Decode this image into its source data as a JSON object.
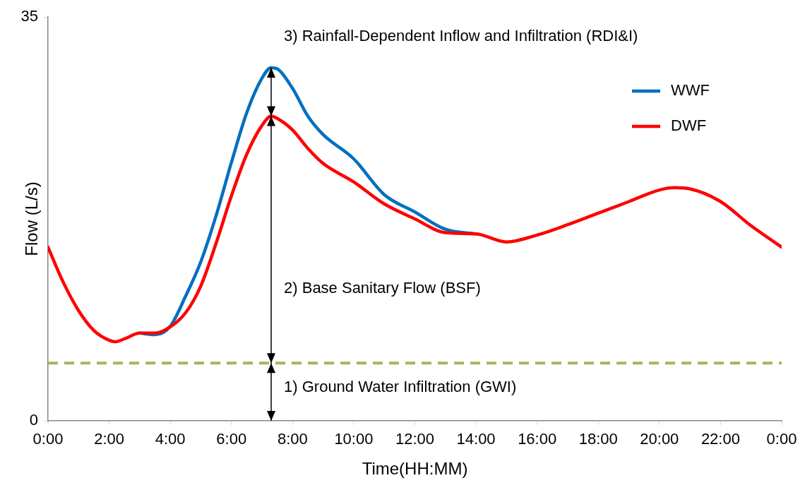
{
  "chart_data": {
    "type": "line",
    "xlabel": "Time(HH:MM)",
    "ylabel": "Flow (L/s)",
    "x": [
      0,
      0.5,
      1,
      1.5,
      2,
      2.2,
      2.5,
      3,
      3.5,
      4,
      4.5,
      5,
      5.5,
      6,
      6.5,
      7,
      7.3,
      7.5,
      8,
      8.5,
      9,
      10,
      11,
      12,
      13,
      14,
      15,
      16,
      17,
      18,
      19,
      20,
      20.5,
      21,
      22,
      23,
      24
    ],
    "series": [
      {
        "name": "WWF",
        "color": "#0070c0",
        "values": [
          null,
          null,
          null,
          null,
          null,
          null,
          null,
          7.6,
          7.47,
          8.2,
          10.8,
          13.8,
          17.8,
          22.4,
          26.7,
          29.7,
          30.6,
          30.5,
          28.8,
          26.4,
          24.8,
          22.7,
          19.6,
          18.1,
          16.6,
          16.2,
          null,
          null,
          null,
          null,
          null,
          null,
          null,
          null,
          null,
          null,
          null
        ]
      },
      {
        "name": "DWF",
        "color": "#ff0000",
        "values": [
          15.05,
          12.0,
          9.55,
          7.83,
          6.98,
          6.85,
          7.1,
          7.6,
          7.6,
          8.14,
          9.36,
          11.7,
          15.4,
          19.5,
          23.1,
          25.6,
          26.4,
          26.2,
          25.2,
          23.6,
          22.3,
          20.7,
          18.8,
          17.5,
          16.3,
          16.2,
          15.5,
          16.1,
          17.0,
          18.0,
          19.0,
          20.0,
          20.2,
          20.1,
          19.0,
          16.9,
          15.05
        ]
      }
    ],
    "ref_lines": [
      {
        "axis": "y",
        "value": 5,
        "color": "#9bbb59",
        "line_style": "dashed"
      }
    ],
    "annotations": [
      "3) Rainfall-Dependent Inflow and Infiltration (RDI&I)",
      "2) Base Sanitary Flow (BSF)",
      "1) Ground Water Infiltration (GWI)"
    ],
    "xlim": [
      0,
      24
    ],
    "xticks": [
      {
        "value": 0,
        "label": "0:00"
      },
      {
        "value": 2,
        "label": "2:00"
      },
      {
        "value": 4,
        "label": "4:00"
      },
      {
        "value": 6,
        "label": "6:00"
      },
      {
        "value": 8,
        "label": "8:00"
      },
      {
        "value": 10,
        "label": "10:00"
      },
      {
        "value": 12,
        "label": "12:00"
      },
      {
        "value": 14,
        "label": "14:00"
      },
      {
        "value": 16,
        "label": "16:00"
      },
      {
        "value": 18,
        "label": "18:00"
      },
      {
        "value": 20,
        "label": "20:00"
      },
      {
        "value": 22,
        "label": "22:00"
      },
      {
        "value": 24,
        "label": "0:00"
      }
    ],
    "ylim": [
      0,
      35
    ],
    "yticks": [
      0,
      35
    ],
    "grid": false,
    "legend": "top right",
    "marker": "none",
    "line_style": "solid"
  }
}
